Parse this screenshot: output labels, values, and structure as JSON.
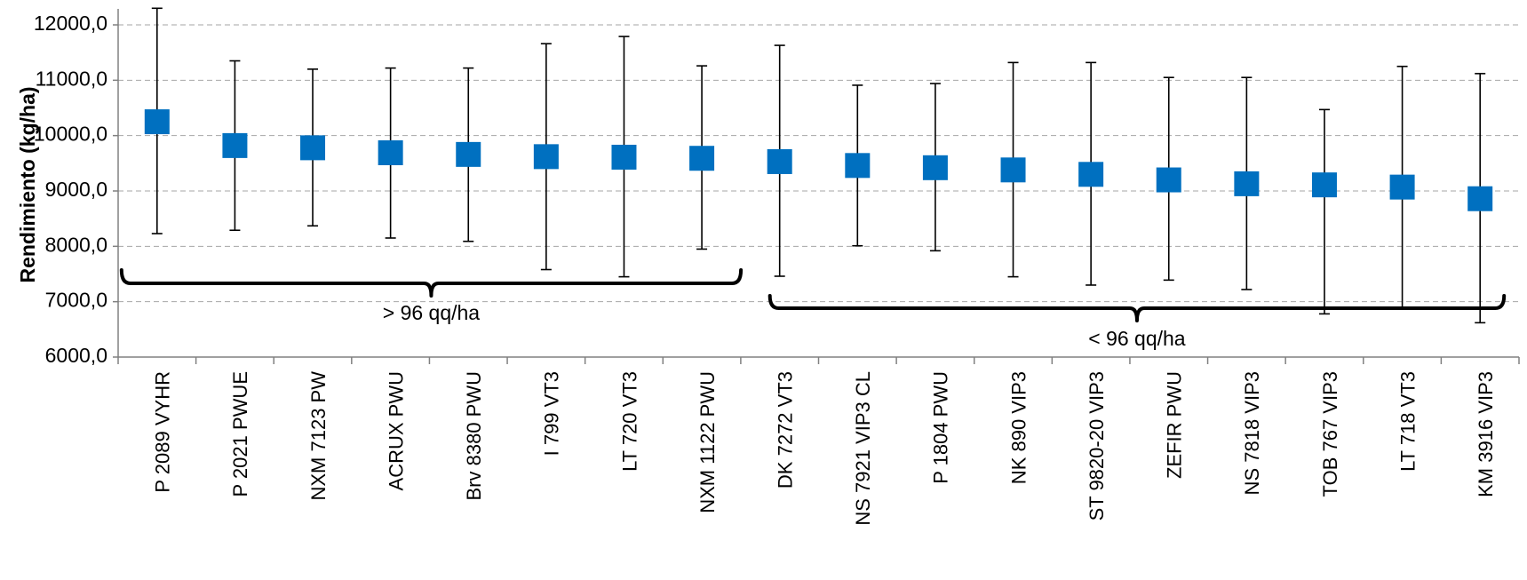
{
  "chart_data": {
    "type": "scatter",
    "ylabel": "Rendimiento (kg/ha)",
    "xlabel": "",
    "title": "",
    "ylim": [
      6000,
      12300
    ],
    "y_ticks": [
      6000,
      7000,
      8000,
      9000,
      10000,
      11000,
      12000
    ],
    "y_tick_labels": [
      "6000,0",
      "7000,0",
      "8000,0",
      "9000,0",
      "10000,0",
      "11000,0",
      "12000,0"
    ],
    "grid": "horizontal-dashed",
    "marker_color": "#0070c0",
    "categories": [
      "P 2089 VYHR",
      "P 2021 PWUE",
      "NXM 7123 PW",
      "ACRUX PWU",
      "Brv 8380 PWU",
      "I 799 VT3",
      "LT 720 VT3",
      "NXM 1122 PWU",
      "DK 7272 VT3",
      "NS 7921 VIP3 CL",
      "P 1804 PWU",
      "NK 890 VIP3",
      "ST 9820-20 VIP3",
      "ZEFIR PWU",
      "NS 7818 VIP3",
      "TOB 767 VIP3",
      "LT 718 VT3",
      "KM 3916 VIP3"
    ],
    "values": [
      10250,
      9820,
      9780,
      9690,
      9660,
      9620,
      9610,
      9590,
      9530,
      9460,
      9420,
      9380,
      9300,
      9200,
      9130,
      9110,
      9070,
      8860
    ],
    "error_high": [
      12300,
      11350,
      11200,
      11220,
      11220,
      11660,
      11790,
      11260,
      11630,
      10910,
      10940,
      11320,
      11320,
      11050,
      11050,
      10470,
      11250,
      11120
    ],
    "error_low": [
      8230,
      8290,
      8370,
      8150,
      8090,
      7580,
      7450,
      7950,
      7460,
      8010,
      7920,
      7450,
      7300,
      7390,
      7220,
      6780,
      6890,
      6620
    ],
    "groups": [
      {
        "label": "> 96 qq/ha",
        "from": 0,
        "to": 7
      },
      {
        "label": "< 96 qq/ha",
        "from": 8,
        "to": 17
      }
    ]
  }
}
